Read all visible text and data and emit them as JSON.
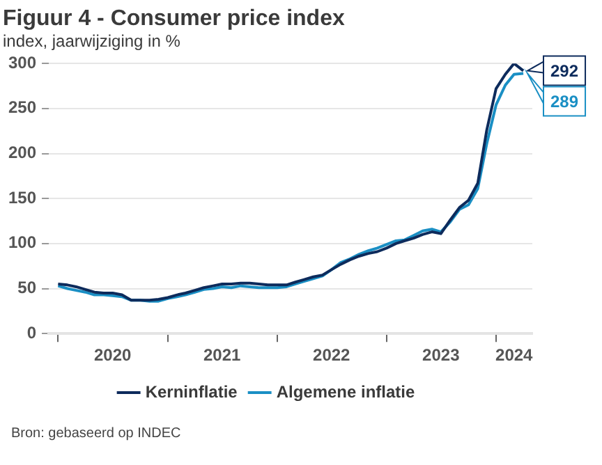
{
  "chart_data": {
    "type": "line",
    "title": "Figuur 4 - Consumer price index",
    "subtitle": "index, jaarwijziging in %",
    "x": [
      "2020-01",
      "2020-02",
      "2020-03",
      "2020-04",
      "2020-05",
      "2020-06",
      "2020-07",
      "2020-08",
      "2020-09",
      "2020-10",
      "2020-11",
      "2020-12",
      "2021-01",
      "2021-02",
      "2021-03",
      "2021-04",
      "2021-05",
      "2021-06",
      "2021-07",
      "2021-08",
      "2021-09",
      "2021-10",
      "2021-11",
      "2021-12",
      "2022-01",
      "2022-02",
      "2022-03",
      "2022-04",
      "2022-05",
      "2022-06",
      "2022-07",
      "2022-08",
      "2022-09",
      "2022-10",
      "2022-11",
      "2022-12",
      "2023-01",
      "2023-02",
      "2023-03",
      "2023-04",
      "2023-05",
      "2023-06",
      "2023-07",
      "2023-08",
      "2023-09",
      "2023-10",
      "2023-11",
      "2023-12",
      "2024-01",
      "2024-02",
      "2024-03",
      "2024-04"
    ],
    "series": [
      {
        "name": "Kerninflatie",
        "color": "#0d2b5c",
        "values": [
          55,
          54,
          52,
          49,
          46,
          45,
          45,
          43,
          37,
          37,
          37,
          38,
          40,
          43,
          45,
          48,
          51,
          53,
          55,
          55,
          56,
          56,
          55,
          54,
          54,
          54,
          57,
          60,
          63,
          65,
          71,
          77,
          82,
          86,
          89,
          91,
          95,
          100,
          103,
          106,
          110,
          113,
          111,
          126,
          140,
          148,
          167,
          226,
          272,
          288,
          300,
          292
        ]
      },
      {
        "name": "Algemene inflatie",
        "color": "#1a8fc4",
        "values": [
          53,
          50,
          48,
          46,
          43,
          43,
          42,
          41,
          37,
          37,
          36,
          36,
          39,
          41,
          43,
          46,
          49,
          50,
          52,
          51,
          53,
          52,
          51,
          51,
          51,
          52,
          55,
          58,
          61,
          64,
          71,
          79,
          83,
          88,
          92,
          95,
          99,
          103,
          104,
          109,
          114,
          116,
          113,
          124,
          138,
          143,
          161,
          211,
          254,
          276,
          288,
          289
        ]
      }
    ],
    "xlim": [
      "2019-12",
      "2024-05"
    ],
    "xticks": [
      {
        "value": "2020-01",
        "label": null
      },
      {
        "value": "2020-07",
        "label": "2020"
      },
      {
        "value": "2021-01",
        "label": null
      },
      {
        "value": "2021-07",
        "label": "2021"
      },
      {
        "value": "2022-01",
        "label": null
      },
      {
        "value": "2022-07",
        "label": "2022"
      },
      {
        "value": "2023-01",
        "label": null
      },
      {
        "value": "2023-07",
        "label": "2023"
      },
      {
        "value": "2024-01",
        "label": null
      },
      {
        "value": "2024-03",
        "label": "2024"
      }
    ],
    "ylim": [
      0,
      300
    ],
    "yticks": [
      0,
      50,
      100,
      150,
      200,
      250,
      300
    ],
    "grid": "y",
    "legend": "bottom",
    "marker": "none",
    "line_style": "solid",
    "annotations": [
      {
        "text": "292",
        "x": "2024-04",
        "y": 292
      },
      {
        "text": "289",
        "x": "2024-04",
        "y": 289
      },
      "Bron: gebaseerd op INDEC"
    ]
  }
}
